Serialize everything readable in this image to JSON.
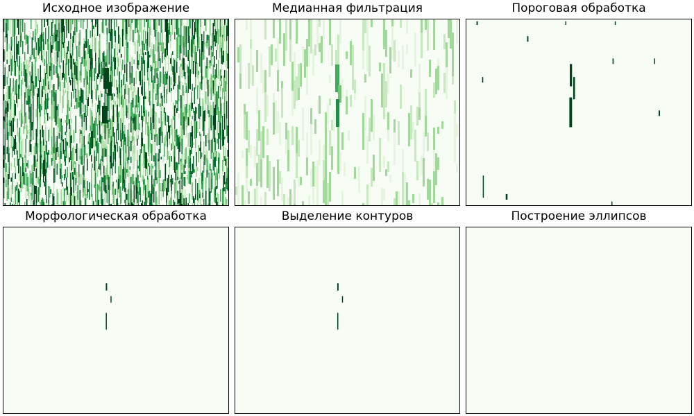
{
  "figure": {
    "colormap": "Greens",
    "background_color": "#f7fcf5",
    "dark_color": "#00441b"
  },
  "panels": [
    {
      "title": "Исходное изображение"
    },
    {
      "title": "Медианная фильтрация"
    },
    {
      "title": "Пороговая обработка"
    },
    {
      "title": "Морфологическая обработка"
    },
    {
      "title": "Выделение контуров"
    },
    {
      "title": "Построение эллипсов"
    }
  ],
  "chart_data": [
    {
      "type": "heatmap",
      "title": "Исходное изображение",
      "xlabel": "",
      "ylabel": "",
      "grid": false,
      "axes_ticks": false,
      "colormap": "Greens",
      "description_of_content": "dense noisy vertical streaks over the whole image",
      "density": 0.55
    },
    {
      "type": "heatmap",
      "title": "Медианная фильтрация",
      "xlabel": "",
      "ylabel": "",
      "grid": false,
      "axes_ticks": false,
      "colormap": "Greens",
      "density": 0.25
    },
    {
      "type": "heatmap",
      "title": "Пороговая обработка",
      "xlabel": "",
      "ylabel": "",
      "grid": false,
      "axes_ticks": false,
      "colormap": "Greens",
      "blobs": [
        {
          "x": 0.045,
          "y": 0.01,
          "w": 0.006,
          "h": 0.02
        },
        {
          "x": 0.27,
          "y": 0.09,
          "w": 0.006,
          "h": 0.03
        },
        {
          "x": 0.44,
          "y": 0.01,
          "w": 0.004,
          "h": 0.02
        },
        {
          "x": 0.66,
          "y": 0.01,
          "w": 0.004,
          "h": 0.02
        },
        {
          "x": 0.645,
          "y": 0.98,
          "w": 0.004,
          "h": 0.03
        },
        {
          "x": 0.46,
          "y": 0.24,
          "w": 0.01,
          "h": 0.12
        },
        {
          "x": 0.475,
          "y": 0.31,
          "w": 0.008,
          "h": 0.12
        },
        {
          "x": 0.458,
          "y": 0.42,
          "w": 0.012,
          "h": 0.16
        },
        {
          "x": 0.07,
          "y": 0.31,
          "w": 0.005,
          "h": 0.03
        },
        {
          "x": 0.65,
          "y": 0.21,
          "w": 0.005,
          "h": 0.03
        },
        {
          "x": 0.835,
          "y": 0.21,
          "w": 0.004,
          "h": 0.03
        },
        {
          "x": 0.855,
          "y": 0.49,
          "w": 0.006,
          "h": 0.03
        },
        {
          "x": 0.073,
          "y": 0.84,
          "w": 0.004,
          "h": 0.12
        },
        {
          "x": 0.175,
          "y": 0.94,
          "w": 0.008,
          "h": 0.03
        }
      ]
    },
    {
      "type": "heatmap",
      "title": "Морфологическая обработка",
      "xlabel": "",
      "ylabel": "",
      "grid": false,
      "axes_ticks": false,
      "colormap": "Greens",
      "blobs": [
        {
          "x": 0.455,
          "y": 0.3,
          "w": 0.006,
          "h": 0.04
        },
        {
          "x": 0.476,
          "y": 0.37,
          "w": 0.004,
          "h": 0.035
        },
        {
          "x": 0.455,
          "y": 0.46,
          "w": 0.004,
          "h": 0.09
        }
      ]
    },
    {
      "type": "heatmap",
      "title": "Выделение контуров",
      "xlabel": "",
      "ylabel": "",
      "grid": false,
      "axes_ticks": false,
      "colormap": "Greens",
      "blobs": [
        {
          "x": 0.455,
          "y": 0.3,
          "w": 0.006,
          "h": 0.04
        },
        {
          "x": 0.476,
          "y": 0.37,
          "w": 0.004,
          "h": 0.035
        },
        {
          "x": 0.455,
          "y": 0.46,
          "w": 0.003,
          "h": 0.09
        }
      ]
    },
    {
      "type": "heatmap",
      "title": "Построение эллипсов",
      "xlabel": "",
      "ylabel": "",
      "grid": false,
      "axes_ticks": false,
      "colormap": "Greens",
      "blobs": []
    }
  ]
}
